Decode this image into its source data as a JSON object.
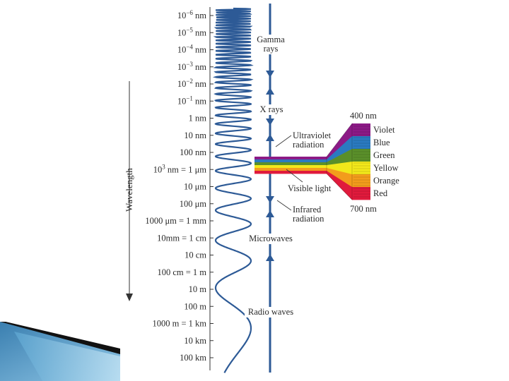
{
  "axis": {
    "title": "Wavelength",
    "ticks": [
      {
        "base": "10",
        "sup": "−6",
        "unit": " nm"
      },
      {
        "base": "10",
        "sup": "−5",
        "unit": " nm"
      },
      {
        "base": "10",
        "sup": "−4",
        "unit": " nm"
      },
      {
        "base": "10",
        "sup": "−3",
        "unit": " nm"
      },
      {
        "base": "10",
        "sup": "−2",
        "unit": " nm"
      },
      {
        "base": "10",
        "sup": "−1",
        "unit": " nm"
      },
      {
        "base": "1 nm",
        "sup": "",
        "unit": ""
      },
      {
        "base": "10 nm",
        "sup": "",
        "unit": ""
      },
      {
        "base": "100 nm",
        "sup": "",
        "unit": ""
      },
      {
        "base": "10",
        "sup": "3",
        "unit": " nm = 1 μm"
      },
      {
        "base": "10 μm",
        "sup": "",
        "unit": ""
      },
      {
        "base": "100 μm",
        "sup": "",
        "unit": ""
      },
      {
        "base": "1000 μm = 1 mm",
        "sup": "",
        "unit": ""
      },
      {
        "base": "10mm = 1 cm",
        "sup": "",
        "unit": ""
      },
      {
        "base": "10 cm",
        "sup": "",
        "unit": ""
      },
      {
        "base": "100 cm = 1 m",
        "sup": "",
        "unit": ""
      },
      {
        "base": "10 m",
        "sup": "",
        "unit": ""
      },
      {
        "base": "100 m",
        "sup": "",
        "unit": ""
      },
      {
        "base": "1000 m = 1 km",
        "sup": "",
        "unit": ""
      },
      {
        "base": "10 km",
        "sup": "",
        "unit": ""
      },
      {
        "base": "100 km",
        "sup": "",
        "unit": ""
      }
    ]
  },
  "bands": [
    {
      "lines": [
        "Gamma",
        "rays"
      ]
    },
    {
      "lines": [
        "X rays"
      ]
    },
    {
      "lines": [
        "Ultraviolet",
        "radiation"
      ]
    },
    {
      "lines": [
        "Visible light"
      ]
    },
    {
      "lines": [
        "Infrared",
        "radiation"
      ]
    },
    {
      "lines": [
        "Microwaves"
      ]
    },
    {
      "lines": [
        "Radio waves"
      ]
    }
  ],
  "spectrum": {
    "top_label": "400 nm",
    "bottom_label": "700 nm",
    "colors": [
      {
        "name": "Violet",
        "hex": "#8c1a86"
      },
      {
        "name": "Blue",
        "hex": "#2a7ac0"
      },
      {
        "name": "Green",
        "hex": "#5a8f2a"
      },
      {
        "name": "Yellow",
        "hex": "#f2e81a"
      },
      {
        "name": "Orange",
        "hex": "#f39c1c"
      },
      {
        "name": "Red",
        "hex": "#e01a3c"
      }
    ]
  },
  "colors": {
    "wave": "#2d5a96",
    "arrow": "#2d5a96",
    "axis": "#333333"
  }
}
